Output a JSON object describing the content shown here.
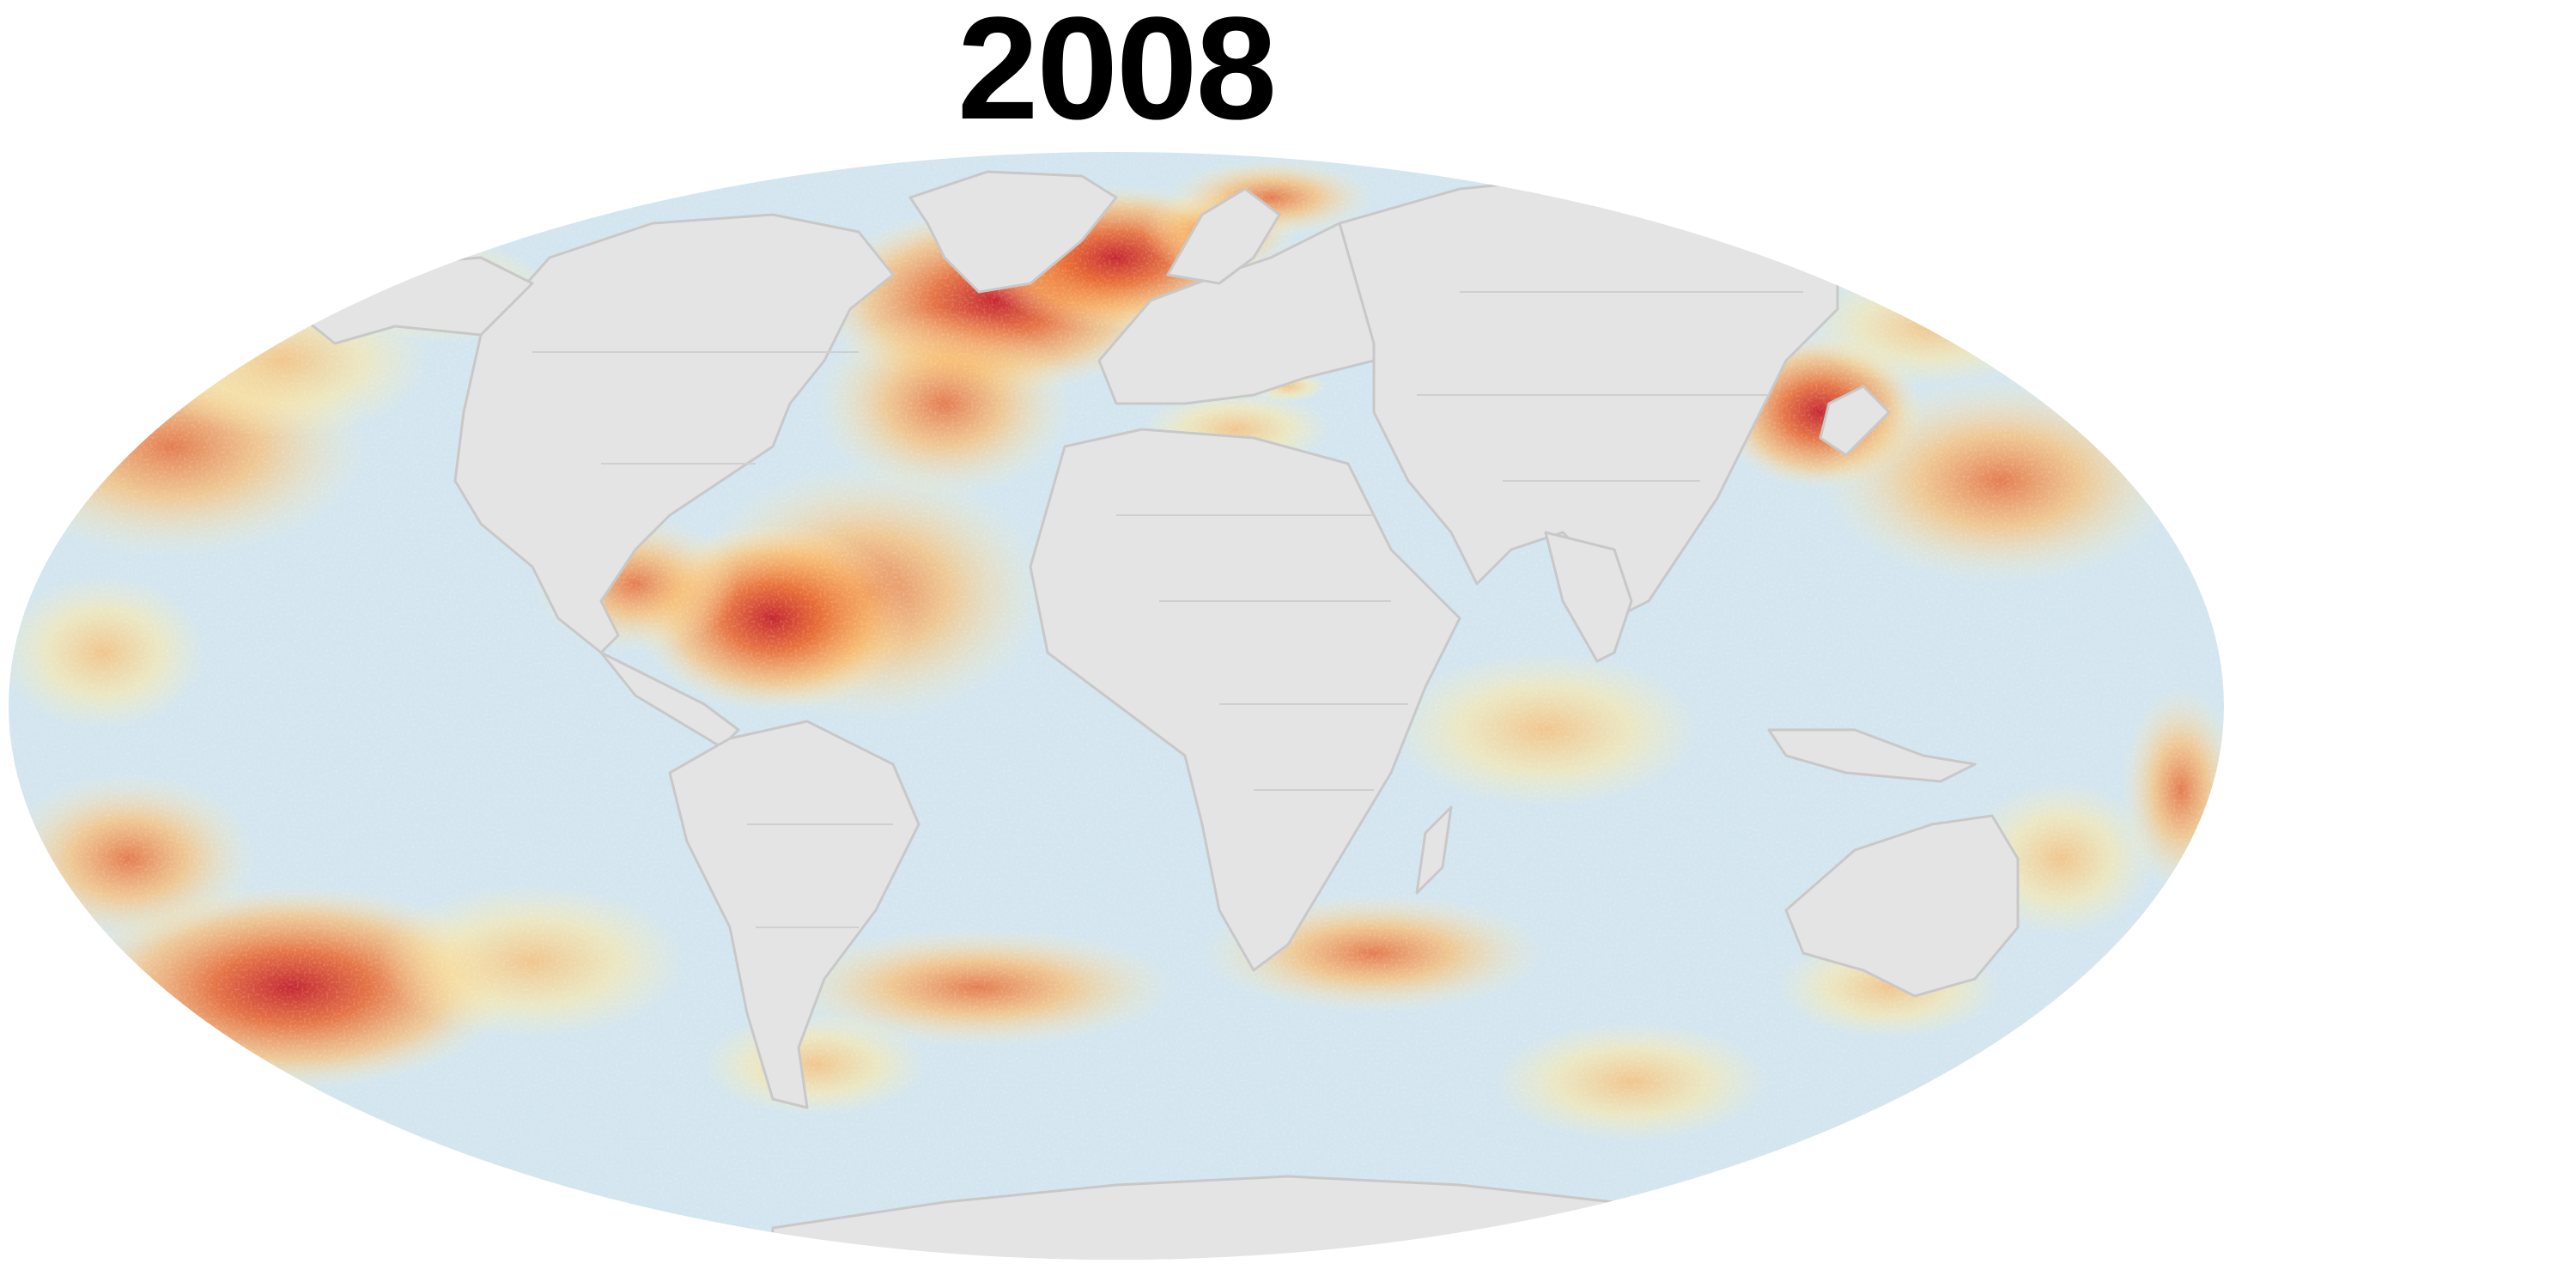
{
  "title": "2008",
  "map": {
    "projection": "mollweide",
    "colors": {
      "ocean": "#d3e5ef",
      "land": "#e4e4e4",
      "land_border": "#c8c8c8",
      "anomaly_low": "#fff3b8",
      "anomaly_mid": "#fdb863",
      "anomaly_high": "#e8622a",
      "anomaly_max": "#c41e2a",
      "background": "#ffffff"
    },
    "shown_layers": [
      "ocean",
      "marine-heatwave-intensity",
      "land",
      "country-borders"
    ]
  }
}
